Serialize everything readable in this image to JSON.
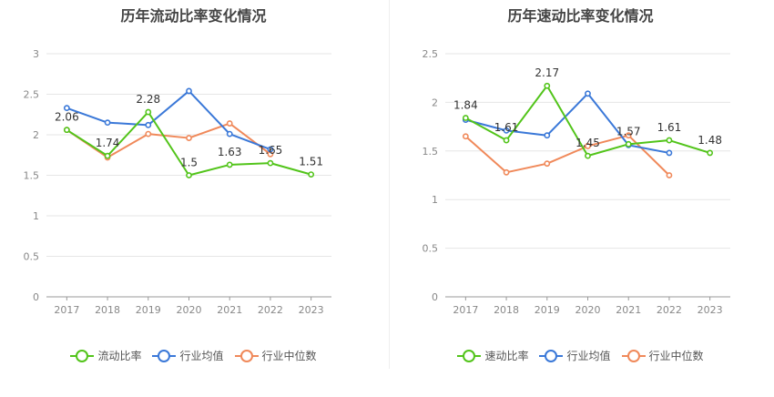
{
  "charts": [
    {
      "title": "历年流动比率变化情况",
      "chart_data": {
        "type": "line",
        "categories": [
          "2017",
          "2018",
          "2019",
          "2020",
          "2021",
          "2022",
          "2023"
        ],
        "ylim": [
          0,
          3
        ],
        "yticks": [
          "0",
          "0.5",
          "1",
          "1.5",
          "2",
          "2.5",
          "3"
        ],
        "grid": true,
        "legend_position": "bottom",
        "series": [
          {
            "name": "流动比率",
            "color": "#52c41a",
            "values": [
              2.06,
              1.74,
              2.28,
              1.5,
              1.63,
              1.65,
              1.51
            ],
            "labels": [
              "2.06",
              "1.74",
              "2.28",
              "1.5",
              "1.63",
              "1.65",
              "1.51"
            ]
          },
          {
            "name": "行业均值",
            "color": "#3a78d8",
            "values": [
              2.33,
              2.15,
              2.12,
              2.54,
              2.01,
              1.82,
              null
            ]
          },
          {
            "name": "行业中位数",
            "color": "#f0895a",
            "values": [
              2.06,
              1.72,
              2.01,
              1.96,
              2.14,
              1.76,
              null
            ]
          }
        ]
      }
    },
    {
      "title": "历年速动比率变化情况",
      "chart_data": {
        "type": "line",
        "categories": [
          "2017",
          "2018",
          "2019",
          "2020",
          "2021",
          "2022",
          "2023"
        ],
        "ylim": [
          0,
          2.5
        ],
        "yticks": [
          "0",
          "0.5",
          "1",
          "1.5",
          "2",
          "2.5"
        ],
        "grid": true,
        "legend_position": "bottom",
        "series": [
          {
            "name": "速动比率",
            "color": "#52c41a",
            "values": [
              1.84,
              1.61,
              2.17,
              1.45,
              1.57,
              1.61,
              1.48
            ],
            "labels": [
              "1.84",
              "1.61",
              "2.17",
              "1.45",
              "1.57",
              "1.61",
              "1.48"
            ]
          },
          {
            "name": "行业均值",
            "color": "#3a78d8",
            "values": [
              1.82,
              1.71,
              1.66,
              2.09,
              1.56,
              1.48,
              null
            ]
          },
          {
            "name": "行业中位数",
            "color": "#f0895a",
            "values": [
              1.65,
              1.28,
              1.37,
              1.55,
              1.66,
              1.25,
              null
            ]
          }
        ]
      }
    }
  ]
}
